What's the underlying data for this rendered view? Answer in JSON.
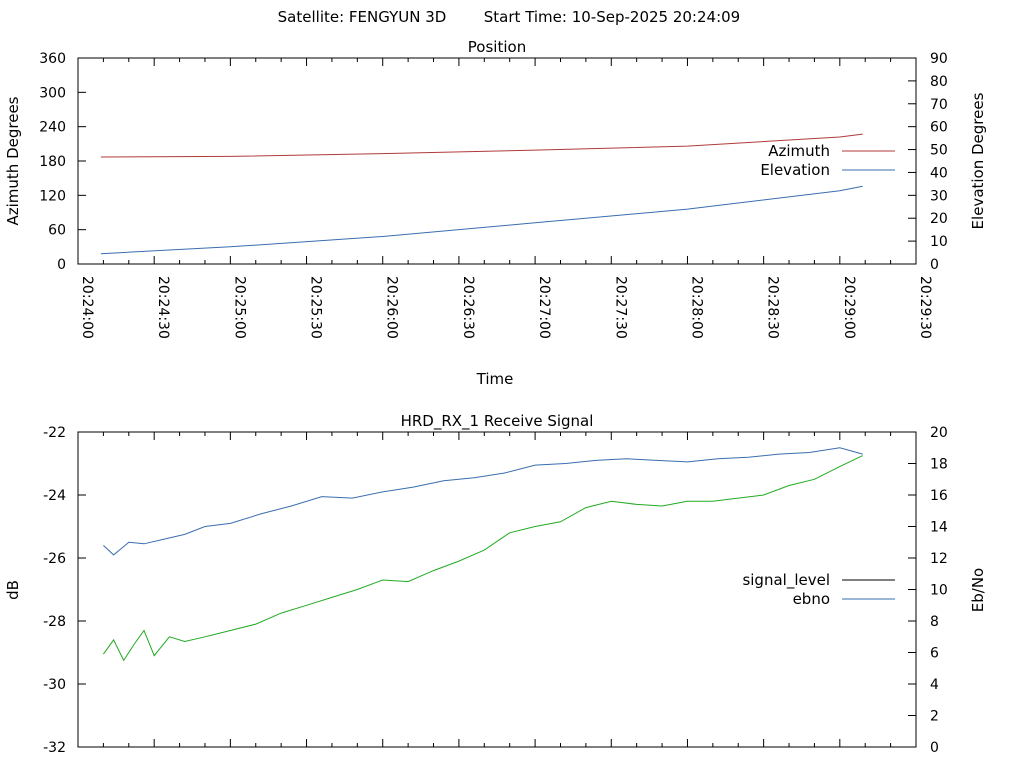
{
  "header": {
    "satellite": "Satellite: FENGYUN 3D",
    "start_time": "Start Time: 10-Sep-2025 20:24:09"
  },
  "chart_data": [
    {
      "type": "line",
      "title": "Position",
      "xlabel": "Time",
      "ylabel": "Azimuth Degrees",
      "y2label": "Elevation Degrees",
      "x_ticks": [
        "20:24:00",
        "20:24:30",
        "20:25:00",
        "20:25:30",
        "20:26:00",
        "20:26:30",
        "20:27:00",
        "20:27:30",
        "20:28:00",
        "20:28:30",
        "20:29:00",
        "20:29:30"
      ],
      "xlim": [
        0,
        330
      ],
      "ylim": [
        0,
        360
      ],
      "y_ticks": [
        "0",
        "60",
        "120",
        "180",
        "240",
        "300",
        "360"
      ],
      "y2lim": [
        0,
        90
      ],
      "y2_ticks": [
        "0",
        "10",
        "20",
        "30",
        "40",
        "50",
        "60",
        "70",
        "80",
        "90"
      ],
      "grid": false,
      "legend_position": "right",
      "series": [
        {
          "name": "Azimuth",
          "axis": "left",
          "color": "#b03a3a",
          "x": [
            9,
            60,
            120,
            180,
            240,
            300,
            309
          ],
          "values": [
            187,
            188,
            193,
            199,
            206,
            222,
            227
          ]
        },
        {
          "name": "Elevation",
          "axis": "right",
          "color": "#3a6db0",
          "x": [
            9,
            60,
            120,
            180,
            240,
            300,
            309
          ],
          "values": [
            4.5,
            7.5,
            12,
            18,
            24,
            32,
            34
          ]
        }
      ]
    },
    {
      "type": "line",
      "title": "HRD_RX_1 Receive Signal",
      "ylabel": "dB",
      "y2label": "Eb/No",
      "ylim": [
        -32,
        -22
      ],
      "y_ticks": [
        "-32",
        "-30",
        "-28",
        "-26",
        "-24",
        "-22"
      ],
      "y2lim": [
        0,
        20
      ],
      "y2_ticks": [
        "0",
        "2",
        "4",
        "6",
        "8",
        "10",
        "12",
        "14",
        "16",
        "18",
        "20"
      ],
      "xlim": [
        0,
        330
      ],
      "grid": false,
      "legend_position": "right",
      "series": [
        {
          "name": "signal_level",
          "axis": "left",
          "color": "#000000",
          "x": [],
          "values": []
        },
        {
          "name": "ebno",
          "axis": "right",
          "color": "#3a6db0",
          "x": [
            10,
            14,
            20,
            26,
            34,
            42,
            50,
            60,
            72,
            84,
            96,
            108,
            120,
            132,
            144,
            156,
            168,
            180,
            192,
            204,
            216,
            228,
            240,
            252,
            264,
            276,
            288,
            300,
            309
          ],
          "values": [
            12.8,
            12.2,
            13.0,
            12.9,
            13.2,
            13.5,
            14.0,
            14.2,
            14.8,
            15.3,
            15.9,
            15.8,
            16.2,
            16.5,
            16.9,
            17.1,
            17.4,
            17.9,
            18.0,
            18.2,
            18.3,
            18.2,
            18.1,
            18.3,
            18.4,
            18.6,
            18.7,
            19.0,
            18.6
          ]
        },
        {
          "name": "",
          "axis": "right",
          "color": "#22aa22",
          "x": [
            10,
            14,
            18,
            22,
            26,
            30,
            36,
            42,
            50,
            60,
            70,
            80,
            90,
            100,
            110,
            120,
            130,
            140,
            150,
            160,
            170,
            180,
            190,
            200,
            210,
            220,
            230,
            240,
            250,
            260,
            270,
            280,
            290,
            300,
            309
          ],
          "values": [
            5.9,
            6.8,
            5.5,
            6.5,
            7.4,
            5.8,
            7.0,
            6.7,
            7.0,
            7.4,
            7.8,
            8.5,
            9.0,
            9.5,
            10.0,
            10.6,
            10.5,
            11.2,
            11.8,
            12.5,
            13.6,
            14.0,
            14.3,
            15.2,
            15.6,
            15.4,
            15.3,
            15.6,
            15.6,
            15.8,
            16.0,
            16.6,
            17.0,
            17.8,
            18.5
          ]
        }
      ]
    }
  ]
}
